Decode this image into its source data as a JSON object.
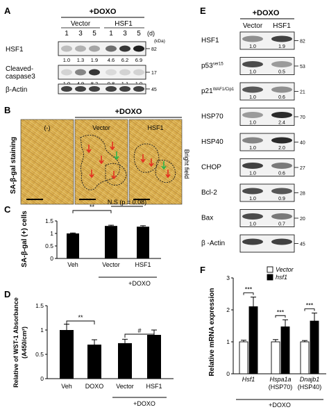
{
  "panelA": {
    "letter": "A",
    "treatment": "+DOXO",
    "group_vector": "Vector",
    "group_hsf1": "HSF1",
    "days": [
      "1",
      "3",
      "5",
      "1",
      "3",
      "5"
    ],
    "days_unit": "(d)",
    "kda_label": "(kDa)",
    "blots": [
      {
        "label": "HSF1",
        "kda": "82",
        "quant": [
          "1.0",
          "1.3",
          "1.9",
          "4.6",
          "6.2",
          "6.9"
        ],
        "intensity": [
          0.25,
          0.3,
          0.35,
          0.6,
          0.85,
          0.95
        ]
      },
      {
        "label": "Cleaved-\ncaspase3",
        "label_line1": "Cleaved-",
        "label_line2": "caspase3",
        "kda": "17",
        "quant": [
          "1.0",
          "4.9",
          "8.2",
          "0.8",
          "1.1",
          "1.0"
        ],
        "intensity": [
          0.15,
          0.5,
          0.85,
          0.12,
          0.15,
          0.15
        ]
      },
      {
        "label": "β-Actin",
        "kda": "45",
        "quant": [],
        "intensity": [
          0.8,
          0.8,
          0.8,
          0.8,
          0.8,
          0.8
        ]
      }
    ]
  },
  "panelB": {
    "letter": "B",
    "treatment": "+DOXO",
    "ylabel": "SA-β-gal staining",
    "side_label": "Bright field",
    "images": [
      "(-)",
      "Vector",
      "HSF1"
    ]
  },
  "panelC": {
    "letter": "C",
    "treatment": "+DOXO",
    "sig1": "**",
    "sig2": "N.S (p = 0.08)",
    "chart_data": {
      "type": "bar",
      "categories": [
        "Veh",
        "Vector",
        "HSF1"
      ],
      "values": [
        1.0,
        1.3,
        1.27
      ],
      "errors": [
        0.02,
        0.03,
        0.04
      ],
      "ylabel": "SA-β-gal (+) cells",
      "ylim": [
        0,
        1.5
      ],
      "yticks": [
        "0",
        "0.5",
        "1",
        "1.5"
      ]
    }
  },
  "panelD": {
    "letter": "D",
    "treatment": "+DOXO",
    "sig1": "**",
    "sig2": "#",
    "chart_data": {
      "type": "bar",
      "categories": [
        "Veh",
        "DOXO",
        "Vector",
        "HSF1"
      ],
      "values": [
        1.0,
        0.7,
        0.73,
        0.9
      ],
      "errors": [
        0.12,
        0.1,
        0.08,
        0.1
      ],
      "ylabel_line1": "Relative of WST-1 Absorbance",
      "ylabel_line2": "(A450/cm²)",
      "ylim": [
        0,
        1.5
      ],
      "yticks": [
        "0",
        "0.5",
        "1",
        "1.5"
      ]
    }
  },
  "panelE": {
    "letter": "E",
    "treatment": "+DOXO",
    "group_vector": "Vector",
    "group_hsf1": "HSF1",
    "blots": [
      {
        "label": "HSF1",
        "kda": "82",
        "quant": [
          "1.0",
          "1.9"
        ],
        "intensity": [
          0.45,
          0.8
        ]
      },
      {
        "label": "p53",
        "label_sup": "ser15",
        "kda": "53",
        "quant": [
          "1.0",
          "0.5"
        ],
        "intensity": [
          0.75,
          0.4
        ]
      },
      {
        "label": "p21",
        "label_sup": "WAF1/Cip1",
        "kda": "21",
        "quant": [
          "1.0",
          "0.6"
        ],
        "intensity": [
          0.7,
          0.45
        ]
      },
      {
        "label": "HSP70",
        "kda": "70",
        "quant": [
          "1.0",
          "2.4"
        ],
        "intensity": [
          0.4,
          0.9
        ]
      },
      {
        "label": "HSP40",
        "kda": "40",
        "quant": [
          "1.0",
          "2.0"
        ],
        "intensity": [
          0.5,
          0.9
        ]
      },
      {
        "label": "CHOP",
        "kda": "27",
        "quant": [
          "1.0",
          "0.6"
        ],
        "intensity": [
          0.8,
          0.55
        ]
      },
      {
        "label": "Bcl-2",
        "kda": "28",
        "quant": [
          "1.0",
          "0.9"
        ],
        "intensity": [
          0.75,
          0.7
        ]
      },
      {
        "label": "Bax",
        "kda": "20",
        "quant": [
          "1.0",
          "0.7"
        ],
        "intensity": [
          0.75,
          0.55
        ]
      },
      {
        "label": "β -Actin",
        "kda": "45",
        "quant": [],
        "intensity": [
          0.8,
          0.8
        ]
      }
    ]
  },
  "panelF": {
    "letter": "F",
    "treatment": "+DOXO",
    "sig": "***",
    "chart_data": {
      "type": "bar",
      "categories": [
        "Hsf1",
        "Hspa1a",
        "Dnajb1"
      ],
      "sublabels": [
        "",
        "(HSP70)",
        "(HSP40)"
      ],
      "series": [
        {
          "name": "Vector",
          "values": [
            1.0,
            1.0,
            1.0
          ],
          "errors": [
            0.05,
            0.07,
            0.04
          ],
          "color": "#ffffff"
        },
        {
          "name": "hsf1",
          "values": [
            2.1,
            1.47,
            1.65
          ],
          "errors": [
            0.3,
            0.22,
            0.25
          ],
          "color": "#000000"
        }
      ],
      "ylabel": "Relative mRNA expression",
      "ylim": [
        0,
        3
      ],
      "yticks": [
        "0",
        "1",
        "2",
        "3"
      ]
    }
  }
}
